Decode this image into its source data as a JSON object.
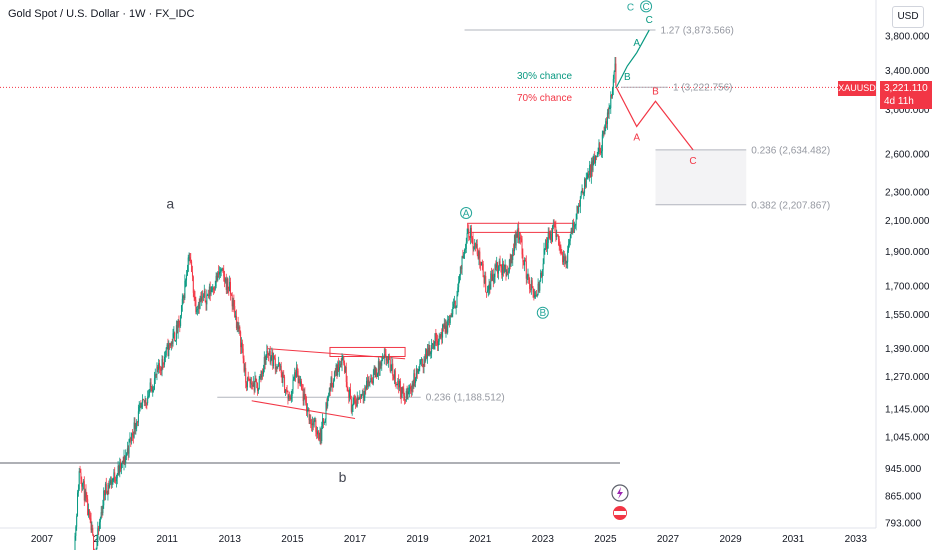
{
  "header": {
    "title": "Gold Spot / U.S. Dollar · 1W · FX_IDC"
  },
  "price_axis": {
    "currency": "USD"
  },
  "last_price": {
    "symbol": "XAUUSD",
    "value": "3,221.110",
    "countdown": "4d 11h"
  },
  "colors": {
    "up": "#089981",
    "down": "#f23645",
    "teal": "#26a69a",
    "red": "#f23645",
    "grey": "#b2b5be",
    "navy": "#434651"
  },
  "chart_data": {
    "type": "candlestick",
    "y_scale": "log",
    "y_ticks": [
      "3,800.000",
      "3,400.000",
      "3,000.000",
      "2,600.000",
      "2,300.000",
      "2,100.000",
      "1,900.000",
      "1,700.000",
      "1,550.000",
      "1,390.000",
      "1,270.000",
      "1,145.000",
      "1,045.000",
      "945.000",
      "865.000",
      "793.000"
    ],
    "x_ticks": [
      "2007",
      "2009",
      "2011",
      "2013",
      "2015",
      "2017",
      "2019",
      "2021",
      "2023",
      "2025",
      "2027",
      "2029",
      "2031",
      "2033"
    ],
    "price_path": [
      {
        "year": 2008.0,
        "price": 700
      },
      {
        "year": 2008.2,
        "price": 950
      },
      {
        "year": 2008.7,
        "price": 720
      },
      {
        "year": 2009.0,
        "price": 880
      },
      {
        "year": 2009.6,
        "price": 960
      },
      {
        "year": 2010.0,
        "price": 1100
      },
      {
        "year": 2010.5,
        "price": 1230
      },
      {
        "year": 2011.0,
        "price": 1380
      },
      {
        "year": 2011.4,
        "price": 1500
      },
      {
        "year": 2011.7,
        "price": 1900
      },
      {
        "year": 2011.9,
        "price": 1600
      },
      {
        "year": 2012.3,
        "price": 1650
      },
      {
        "year": 2012.7,
        "price": 1780
      },
      {
        "year": 2013.0,
        "price": 1680
      },
      {
        "year": 2013.4,
        "price": 1390
      },
      {
        "year": 2013.5,
        "price": 1250
      },
      {
        "year": 2013.9,
        "price": 1230
      },
      {
        "year": 2014.2,
        "price": 1380
      },
      {
        "year": 2014.6,
        "price": 1300
      },
      {
        "year": 2014.9,
        "price": 1170
      },
      {
        "year": 2015.1,
        "price": 1290
      },
      {
        "year": 2015.6,
        "price": 1100
      },
      {
        "year": 2015.9,
        "price": 1050
      },
      {
        "year": 2016.2,
        "price": 1230
      },
      {
        "year": 2016.6,
        "price": 1360
      },
      {
        "year": 2016.9,
        "price": 1150
      },
      {
        "year": 2017.5,
        "price": 1260
      },
      {
        "year": 2018.0,
        "price": 1350
      },
      {
        "year": 2018.6,
        "price": 1180
      },
      {
        "year": 2019.0,
        "price": 1290
      },
      {
        "year": 2019.5,
        "price": 1420
      },
      {
        "year": 2019.9,
        "price": 1480
      },
      {
        "year": 2020.2,
        "price": 1600
      },
      {
        "year": 2020.6,
        "price": 2050
      },
      {
        "year": 2021.0,
        "price": 1850
      },
      {
        "year": 2021.2,
        "price": 1680
      },
      {
        "year": 2021.5,
        "price": 1800
      },
      {
        "year": 2021.9,
        "price": 1790
      },
      {
        "year": 2022.2,
        "price": 2050
      },
      {
        "year": 2022.5,
        "price": 1750
      },
      {
        "year": 2022.8,
        "price": 1620
      },
      {
        "year": 2023.1,
        "price": 1950
      },
      {
        "year": 2023.4,
        "price": 2050
      },
      {
        "year": 2023.7,
        "price": 1820
      },
      {
        "year": 2024.0,
        "price": 2080
      },
      {
        "year": 2024.3,
        "price": 2350
      },
      {
        "year": 2024.6,
        "price": 2500
      },
      {
        "year": 2024.9,
        "price": 2700
      },
      {
        "year": 2025.1,
        "price": 2950
      },
      {
        "year": 2025.3,
        "price": 3450
      },
      {
        "year": 2025.35,
        "price": 3221
      }
    ],
    "scenarios": [
      {
        "label": "30% chance",
        "color": "#089981",
        "path": [
          {
            "year": 2025.35,
            "price": 3221,
            "tag": ""
          },
          {
            "year": 2025.7,
            "price": 3450,
            "tag": "B"
          },
          {
            "year": 2026.0,
            "price": 3600,
            "tag": "A"
          },
          {
            "year": 2026.4,
            "price": 3873.566,
            "tag": "C"
          }
        ]
      },
      {
        "label": "70% chance",
        "color": "#f23645",
        "path": [
          {
            "year": 2025.35,
            "price": 3221,
            "tag": ""
          },
          {
            "year": 2026.0,
            "price": 2840,
            "tag": "A"
          },
          {
            "year": 2026.6,
            "price": 3080,
            "tag": "B"
          },
          {
            "year": 2027.8,
            "price": 2634.482,
            "tag": "C"
          }
        ]
      }
    ],
    "fib_levels": [
      {
        "label": "1.27 (3,873.566)",
        "price": 3873.566,
        "from": 2020.5,
        "to": 2026.6
      },
      {
        "label": "1 (3,222.756)",
        "price": 3222.756,
        "from": 2025.5,
        "to": 2027.0
      },
      {
        "label": "0.236 (2,634.482)",
        "price": 2634.482,
        "from": 2026.6,
        "to": 2029.5
      },
      {
        "label": "0.382 (2,207.867)",
        "price": 2207.867,
        "from": 2026.6,
        "to": 2029.5
      },
      {
        "label": "0.236 (1,188.512)",
        "price": 1188.512,
        "from": 2012.6,
        "to": 2019.1
      }
    ],
    "wave_labels": [
      {
        "text": "a",
        "year": 2011.1,
        "price": 2180,
        "style": "plain"
      },
      {
        "text": "b",
        "year": 2016.6,
        "price": 905,
        "style": "plain"
      },
      {
        "text": "A",
        "year": 2020.55,
        "price": 2150,
        "style": "circle"
      },
      {
        "text": "B",
        "year": 2023.0,
        "price": 1560,
        "style": "circle"
      },
      {
        "text": "C",
        "year": 2026.3,
        "price": 4180,
        "style": "circle"
      }
    ],
    "support_line_price": 962
  }
}
